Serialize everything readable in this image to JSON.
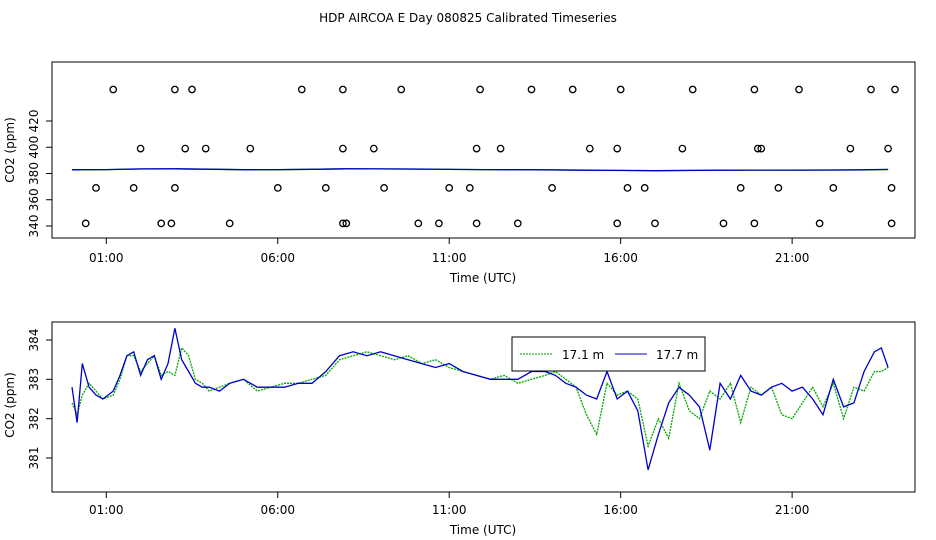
{
  "title": "HDP AIRCOA E  Day 080825  Calibrated Timeseries",
  "chart_data": [
    {
      "type": "line+scatter",
      "xlabel": "Time (UTC)",
      "ylabel": "CO2 (ppm)",
      "xlim": [
        0.0,
        24.0
      ],
      "ylim": [
        339,
        451
      ],
      "x_ticks": [
        1,
        6,
        11,
        16,
        21
      ],
      "x_tick_labels": [
        "01:00",
        "06:00",
        "11:00",
        "16:00",
        "21:00"
      ],
      "y_ticks": [
        340,
        360,
        380,
        400,
        420
      ],
      "y_tick_labels": [
        "340",
        "360",
        "380",
        "400",
        "420"
      ],
      "grid": false,
      "series": [
        {
          "color": "#00aa00",
          "x": [
            0.0,
            1.0,
            2.0,
            3.0,
            4.0,
            5.0,
            6.0,
            7.0,
            8.0,
            9.0,
            10.0,
            11.0,
            12.0,
            13.0,
            14.0,
            15.0,
            16.0,
            17.0,
            18.0,
            19.0,
            20.0,
            21.0,
            22.0,
            23.0,
            23.8
          ],
          "y": [
            382.8,
            383.0,
            383.4,
            383.6,
            383.2,
            382.9,
            382.9,
            383.2,
            383.6,
            383.5,
            383.3,
            383.1,
            383.0,
            382.9,
            382.7,
            382.4,
            382.3,
            382.1,
            382.3,
            382.5,
            382.6,
            382.5,
            382.6,
            382.7,
            383.0
          ]
        },
        {
          "color": "#0000cc",
          "x": [
            0.0,
            1.0,
            2.0,
            3.0,
            4.0,
            5.0,
            6.0,
            7.0,
            8.0,
            9.0,
            10.0,
            11.0,
            12.0,
            13.0,
            14.0,
            15.0,
            16.0,
            17.0,
            18.0,
            19.0,
            20.0,
            21.0,
            22.0,
            23.0,
            23.8
          ],
          "y": [
            382.9,
            383.0,
            383.5,
            383.6,
            383.3,
            382.9,
            383.0,
            383.2,
            383.6,
            383.5,
            383.4,
            383.1,
            383.0,
            382.9,
            382.8,
            382.5,
            382.4,
            382.1,
            382.4,
            382.5,
            382.6,
            382.6,
            382.7,
            382.8,
            383.1
          ]
        }
      ],
      "calibration_points": {
        "x": [
          1.2,
          2.0,
          1.8,
          0.7,
          0.4,
          2.6,
          3.0,
          3.3,
          3.0,
          2.9,
          3.9,
          3.5,
          4.6,
          6.0,
          5.2,
          6.7,
          7.4,
          7.9,
          7.9,
          7.9,
          8.0,
          9.1,
          8.8,
          10.1,
          9.6,
          11.0,
          10.7,
          11.8,
          11.6,
          11.8,
          11.9,
          12.5,
          13.4,
          13.0,
          14.0,
          15.1,
          14.6,
          15.9,
          16.2,
          15.9,
          16.0,
          17.0,
          16.7,
          17.8,
          18.1,
          19.0,
          19.5,
          20.1,
          19.9,
          19.9,
          20.0,
          20.6,
          21.2,
          21.8,
          22.2,
          22.7,
          23.3,
          23.8,
          23.9,
          23.9,
          24.0
        ],
        "y": [
          444,
          399,
          369,
          369,
          342,
          342,
          369,
          399,
          444,
          342,
          399,
          444,
          342,
          369,
          399,
          444,
          369,
          399,
          444,
          342,
          342,
          369,
          399,
          342,
          444,
          369,
          342,
          399,
          369,
          342,
          444,
          399,
          444,
          342,
          369,
          399,
          444,
          399,
          369,
          342,
          444,
          342,
          369,
          399,
          444,
          342,
          369,
          399,
          342,
          444,
          399,
          369,
          444,
          342,
          369,
          399,
          444,
          399,
          369,
          342,
          444
        ]
      }
    },
    {
      "type": "line",
      "xlabel": "Time (UTC)",
      "ylabel": "CO2 (ppm)",
      "xlim": [
        0.0,
        24.0
      ],
      "ylim": [
        360.4,
        384.3
      ],
      "x_ticks": [
        1,
        6,
        11,
        16,
        21
      ],
      "x_tick_labels": [
        "01:00",
        "06:00",
        "11:00",
        "16:00",
        "21:00"
      ],
      "y_ticks": [
        381,
        382,
        383,
        384
      ],
      "y_tick_labels": [
        "381",
        "382",
        "383",
        "384"
      ],
      "grid": false,
      "legend": {
        "placement": "top-center-right",
        "entries": [
          "17.1 m",
          "17.7 m"
        ]
      },
      "series": [
        {
          "name": "17.1 m",
          "color": "#00aa00",
          "x": [
            0.0,
            0.15,
            0.3,
            0.5,
            0.7,
            0.9,
            1.2,
            1.4,
            1.6,
            1.8,
            2.0,
            2.2,
            2.4,
            2.6,
            2.8,
            3.0,
            3.2,
            3.4,
            3.6,
            3.8,
            4.0,
            4.3,
            4.6,
            5.0,
            5.4,
            5.8,
            6.2,
            6.6,
            7.0,
            7.4,
            7.8,
            8.2,
            8.6,
            9.0,
            9.4,
            9.8,
            10.2,
            10.6,
            11.0,
            11.4,
            11.8,
            12.2,
            12.6,
            13.0,
            13.4,
            13.8,
            14.1,
            14.4,
            14.7,
            15.0,
            15.3,
            15.6,
            15.9,
            16.2,
            16.5,
            16.8,
            17.1,
            17.4,
            17.7,
            18.0,
            18.3,
            18.6,
            18.9,
            19.2,
            19.5,
            19.8,
            20.1,
            20.4,
            20.7,
            21.0,
            21.3,
            21.6,
            21.9,
            22.2,
            22.5,
            22.8,
            23.1,
            23.4,
            23.6,
            23.8
          ],
          "y": [
            382.4,
            382.1,
            382.6,
            382.9,
            382.7,
            382.5,
            382.6,
            383.0,
            383.6,
            383.6,
            383.2,
            383.4,
            383.6,
            383.1,
            383.2,
            383.1,
            383.8,
            383.6,
            383.0,
            382.9,
            382.7,
            382.8,
            382.9,
            383.0,
            382.7,
            382.8,
            382.9,
            382.9,
            383.0,
            383.1,
            383.5,
            383.6,
            383.7,
            383.6,
            383.5,
            383.6,
            383.4,
            383.5,
            383.3,
            383.2,
            383.1,
            383.0,
            383.1,
            382.9,
            383.0,
            383.1,
            383.2,
            383.0,
            382.8,
            382.1,
            381.6,
            382.9,
            382.6,
            382.7,
            382.5,
            381.3,
            382.0,
            381.5,
            382.9,
            382.2,
            382.0,
            382.7,
            382.5,
            382.9,
            381.9,
            382.8,
            382.6,
            382.8,
            382.1,
            382.0,
            382.4,
            382.8,
            382.3,
            382.9,
            382.0,
            382.8,
            382.7,
            383.2,
            383.2,
            383.3
          ]
        },
        {
          "name": "17.7 m",
          "color": "#0000cc",
          "x": [
            0.0,
            0.15,
            0.3,
            0.5,
            0.7,
            0.9,
            1.2,
            1.4,
            1.6,
            1.8,
            2.0,
            2.2,
            2.4,
            2.6,
            2.8,
            3.0,
            3.2,
            3.4,
            3.6,
            3.8,
            4.0,
            4.3,
            4.6,
            5.0,
            5.4,
            5.8,
            6.2,
            6.6,
            7.0,
            7.4,
            7.8,
            8.2,
            8.6,
            9.0,
            9.4,
            9.8,
            10.2,
            10.6,
            11.0,
            11.4,
            11.8,
            12.2,
            12.6,
            13.0,
            13.4,
            13.8,
            14.1,
            14.4,
            14.7,
            15.0,
            15.3,
            15.6,
            15.9,
            16.2,
            16.5,
            16.8,
            17.1,
            17.4,
            17.7,
            18.0,
            18.3,
            18.6,
            18.9,
            19.2,
            19.5,
            19.8,
            20.1,
            20.4,
            20.7,
            21.0,
            21.3,
            21.6,
            21.9,
            22.2,
            22.5,
            22.8,
            23.1,
            23.4,
            23.6,
            23.8
          ],
          "y": [
            382.8,
            381.9,
            383.4,
            382.8,
            382.6,
            382.5,
            382.7,
            383.1,
            383.6,
            383.7,
            383.1,
            383.5,
            383.6,
            383.0,
            383.4,
            384.3,
            383.5,
            383.2,
            382.9,
            382.8,
            382.8,
            382.7,
            382.9,
            383.0,
            382.8,
            382.8,
            382.8,
            382.9,
            382.9,
            383.2,
            383.6,
            383.7,
            383.6,
            383.7,
            383.6,
            383.5,
            383.4,
            383.3,
            383.4,
            383.2,
            383.1,
            383.0,
            383.0,
            383.0,
            383.2,
            383.2,
            383.1,
            382.9,
            382.8,
            382.6,
            382.5,
            383.2,
            382.5,
            382.7,
            382.2,
            380.7,
            381.6,
            382.4,
            382.8,
            382.6,
            382.3,
            381.2,
            382.9,
            382.5,
            383.1,
            382.7,
            382.6,
            382.8,
            382.9,
            382.7,
            382.8,
            382.5,
            382.1,
            383.0,
            382.3,
            382.4,
            383.2,
            383.7,
            383.8,
            383.3
          ]
        }
      ]
    }
  ]
}
